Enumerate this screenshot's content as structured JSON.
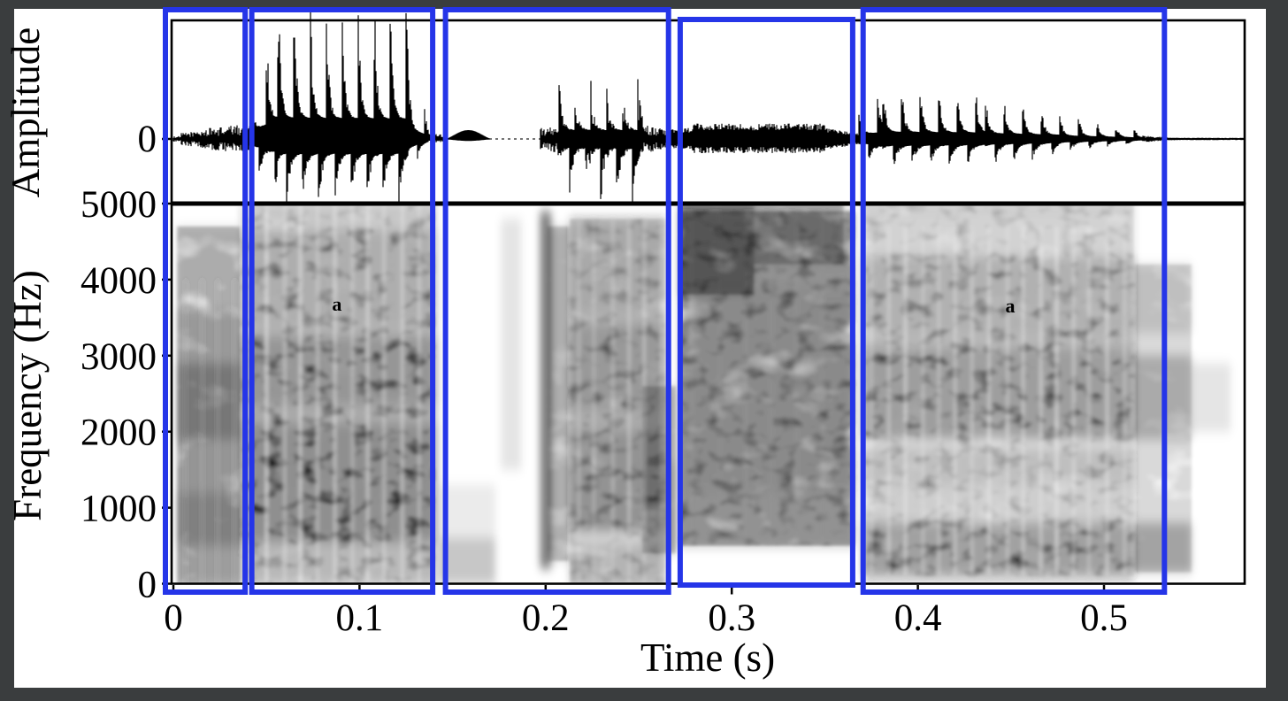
{
  "figure": {
    "kind": "speech waveform and spectrogram figure",
    "background": "#ffffff",
    "frame_color": "#3a3d3e"
  },
  "colors": {
    "highlight_box": "#2535e8",
    "trace": "#000000",
    "annotation": "#b9b400",
    "axis": "#000000"
  },
  "axes": {
    "time": {
      "label": "Time (s)",
      "ticks": [
        {
          "value": 0.0,
          "label": "0"
        },
        {
          "value": 0.1,
          "label": "0.1"
        },
        {
          "value": 0.2,
          "label": "0.2"
        },
        {
          "value": 0.3,
          "label": "0.3"
        },
        {
          "value": 0.4,
          "label": "0.4"
        },
        {
          "value": 0.5,
          "label": "0.5"
        }
      ]
    },
    "frequency": {
      "label": "Frequency (Hz)",
      "ticks": [
        {
          "value": 0,
          "label": "0"
        },
        {
          "value": 1000,
          "label": "1000"
        },
        {
          "value": 2000,
          "label": "2000"
        },
        {
          "value": 3000,
          "label": "3000"
        },
        {
          "value": 4000,
          "label": "4000"
        },
        {
          "value": 5000,
          "label": "5000"
        }
      ]
    },
    "amplitude": {
      "label": "Amplitude",
      "ticks": [
        {
          "value": 0,
          "label": "0"
        }
      ]
    }
  },
  "segmentation_boxes": [
    {
      "t0": -0.0043,
      "t1": 0.0385,
      "inset": false
    },
    {
      "t0": 0.0421,
      "t1": 0.1393,
      "inset": false
    },
    {
      "t0": 0.1462,
      "t1": 0.266,
      "inset": false
    },
    {
      "t0": 0.2723,
      "t1": 0.365,
      "inset": true
    },
    {
      "t0": 0.3706,
      "t1": 0.5325,
      "inset": false
    }
  ],
  "chart_data": [
    {
      "type": "line",
      "panel": "top",
      "title": "speech pressure waveform",
      "ylabel": "Amplitude",
      "x_range_s": [
        0,
        0.5756
      ],
      "zero_line_style": "dashed",
      "amplitude_unit": "normalized, 1.0 = distance from zero line to panel top (clipped)",
      "envelope_segments": [
        {
          "t0": 0.0,
          "t1": 0.004,
          "kind": "quiet",
          "amp_pos": [
            0.02,
            0.02
          ],
          "amp_neg": [
            0.02,
            0.02
          ]
        },
        {
          "t0": 0.004,
          "t1": 0.018,
          "kind": "noise",
          "amp_pos": [
            0.05,
            0.08
          ],
          "amp_neg": [
            0.05,
            0.08
          ]
        },
        {
          "t0": 0.018,
          "t1": 0.041,
          "kind": "noise",
          "amp_pos": [
            0.09,
            0.13
          ],
          "amp_neg": [
            0.09,
            0.13
          ]
        },
        {
          "t0": 0.041,
          "t1": 0.056,
          "kind": "voiced",
          "amp_pos": [
            0.3,
            0.95
          ],
          "amp_neg": [
            0.22,
            0.5
          ],
          "period_s": 0.0088
        },
        {
          "t0": 0.056,
          "t1": 0.126,
          "kind": "voiced",
          "amp_pos": [
            1.0,
            0.95
          ],
          "amp_neg": [
            0.55,
            0.55
          ],
          "period_s": 0.0086
        },
        {
          "t0": 0.126,
          "t1": 0.137,
          "kind": "voiced",
          "amp_pos": [
            0.5,
            0.18
          ],
          "amp_neg": [
            0.32,
            0.1
          ],
          "period_s": 0.0086
        },
        {
          "t0": 0.137,
          "t1": 0.147,
          "kind": "quiet",
          "amp_pos": [
            0.05,
            0.03
          ],
          "amp_neg": [
            0.03,
            0.02
          ]
        },
        {
          "t0": 0.147,
          "t1": 0.17,
          "kind": "hump",
          "amp_pos": [
            0.07,
            0.07
          ],
          "amp_neg": [
            0.012,
            0.012
          ]
        },
        {
          "t0": 0.17,
          "t1": 0.197,
          "kind": "silence",
          "amp_pos": [
            0,
            0
          ],
          "amp_neg": [
            0,
            0
          ]
        },
        {
          "t0": 0.197,
          "t1": 0.207,
          "kind": "noise",
          "amp_pos": [
            0.1,
            0.14
          ],
          "amp_neg": [
            0.1,
            0.14
          ]
        },
        {
          "t0": 0.207,
          "t1": 0.252,
          "kind": "burst",
          "amp_pos": [
            0.5,
            0.48
          ],
          "amp_neg": [
            0.48,
            0.5
          ],
          "period_s": 0.0085
        },
        {
          "t0": 0.252,
          "t1": 0.267,
          "kind": "noise",
          "amp_pos": [
            0.13,
            0.07
          ],
          "amp_neg": [
            0.13,
            0.07
          ]
        },
        {
          "t0": 0.267,
          "t1": 0.279,
          "kind": "fricative",
          "amp_pos": [
            0.08,
            0.1
          ],
          "amp_neg": [
            0.08,
            0.1
          ]
        },
        {
          "t0": 0.279,
          "t1": 0.35,
          "kind": "fricative",
          "amp_pos": [
            0.13,
            0.13
          ],
          "amp_neg": [
            0.12,
            0.12
          ]
        },
        {
          "t0": 0.35,
          "t1": 0.368,
          "kind": "fricative",
          "amp_pos": [
            0.09,
            0.05
          ],
          "amp_neg": [
            0.09,
            0.05
          ]
        },
        {
          "t0": 0.368,
          "t1": 0.381,
          "kind": "voiced",
          "amp_pos": [
            0.2,
            0.33
          ],
          "amp_neg": [
            0.15,
            0.26
          ],
          "period_s": 0.01
        },
        {
          "t0": 0.381,
          "t1": 0.436,
          "kind": "voiced",
          "amp_pos": [
            0.34,
            0.3
          ],
          "amp_neg": [
            0.26,
            0.22
          ],
          "period_s": 0.01
        },
        {
          "t0": 0.436,
          "t1": 0.476,
          "kind": "voiced",
          "amp_pos": [
            0.28,
            0.2
          ],
          "amp_neg": [
            0.21,
            0.15
          ],
          "period_s": 0.01
        },
        {
          "t0": 0.476,
          "t1": 0.52,
          "kind": "voiced",
          "amp_pos": [
            0.17,
            0.07
          ],
          "amp_neg": [
            0.13,
            0.05
          ],
          "period_s": 0.01
        },
        {
          "t0": 0.52,
          "t1": 0.534,
          "kind": "quiet",
          "amp_pos": [
            0.025,
            0.012
          ],
          "amp_neg": [
            0.025,
            0.012
          ]
        },
        {
          "t0": 0.534,
          "t1": 0.576,
          "kind": "line",
          "amp_pos": [
            0.008,
            0.006
          ],
          "amp_neg": [
            0.008,
            0.006
          ]
        }
      ]
    },
    {
      "type": "heatmap",
      "panel": "bottom",
      "title": "wideband spectrogram",
      "xlabel": "Time (s)",
      "ylabel": "Frequency (Hz)",
      "x_range_s": [
        0,
        0.5756
      ],
      "y_range_hz": [
        0,
        5000
      ],
      "colormap": "grayscale, dark = high energy",
      "glottal_striation_period_s": 0.009,
      "regions": [
        {
          "name": "onset-noise",
          "t0": 0.002,
          "t1": 0.036,
          "striation_opacity": 0.22,
          "noise_dark": 0.25,
          "noise_light": 0,
          "striation_freq_range": [
            0,
            4000
          ],
          "bands": [
            [
              0,
              500,
              0.18
            ],
            [
              500,
              1200,
              0.33
            ],
            [
              1200,
              1900,
              0.22
            ],
            [
              1900,
              2900,
              0.38
            ],
            [
              2900,
              3600,
              0.2
            ],
            [
              3600,
              4700,
              0.1
            ]
          ]
        },
        {
          "name": "vowel-1",
          "t0": 0.037,
          "t1": 0.141,
          "striation_opacity": 0.5,
          "noise_dark": 0.2,
          "noise_light": 0.5,
          "striation_freq_range": [
            0,
            5000
          ],
          "bands": [
            [
              0,
              550,
              0.45
            ],
            [
              550,
              2100,
              0.85
            ],
            [
              2100,
              2350,
              0.58
            ],
            [
              2350,
              3250,
              0.78
            ],
            [
              3250,
              3450,
              0.5
            ],
            [
              3450,
              4650,
              0.55
            ],
            [
              4650,
              4900,
              0.3
            ],
            [
              4900,
              5000,
              0.35
            ]
          ]
        },
        {
          "name": "gap-low-blob",
          "t0": 0.142,
          "t1": 0.173,
          "striation_opacity": 0,
          "noise_dark": 0,
          "noise_light": 0,
          "bands": [
            [
              0,
              600,
              0.22
            ],
            [
              600,
              1300,
              0.08
            ]
          ]
        },
        {
          "name": "pre-burst-wisp",
          "t0": 0.176,
          "t1": 0.187,
          "striation_opacity": 0,
          "noise_dark": 0,
          "noise_light": 0,
          "bands": [
            [
              1500,
              4800,
              0.1
            ]
          ]
        },
        {
          "name": "burst-spike",
          "t0": 0.197,
          "t1": 0.203,
          "striation_opacity": 0,
          "noise_dark": 0,
          "noise_light": 0,
          "bands": [
            [
              200,
              4900,
              0.5
            ]
          ]
        },
        {
          "name": "burst-after",
          "t0": 0.201,
          "t1": 0.213,
          "striation_opacity": 0,
          "noise_dark": 0.2,
          "noise_light": 0,
          "bands": [
            [
              300,
              4700,
              0.15
            ]
          ]
        },
        {
          "name": "consonant",
          "t0": 0.213,
          "t1": 0.264,
          "striation_opacity": 0.45,
          "noise_dark": 0.3,
          "noise_light": 0.4,
          "striation_freq_range": [
            0,
            4800
          ],
          "bands": [
            [
              0,
              500,
              0.28
            ],
            [
              700,
              2000,
              0.58
            ],
            [
              2000,
              2300,
              0.36
            ],
            [
              2300,
              3400,
              0.52
            ],
            [
              3400,
              3600,
              0.3
            ],
            [
              3600,
              4800,
              0.38
            ]
          ]
        },
        {
          "name": "consonant-tail",
          "t0": 0.252,
          "t1": 0.27,
          "striation_opacity": 0,
          "noise_dark": 0.2,
          "noise_light": 0,
          "bands": [
            [
              400,
              1600,
              0.22
            ],
            [
              1600,
              2600,
              0.14
            ]
          ]
        },
        {
          "name": "fricative",
          "t0": 0.272,
          "t1": 0.366,
          "striation_opacity": 0.15,
          "striation_period_s": 0.014,
          "noise_dark": 0.55,
          "noise_light": 0.35,
          "striation_freq_range": [
            500,
            4900
          ],
          "bands": [
            [
              500,
              4900,
              0.26
            ],
            [
              1200,
              3900,
              0.1
            ]
          ]
        },
        {
          "name": "fricative-top-cloud",
          "t0": 0.272,
          "t1": 0.312,
          "striation_opacity": 0,
          "noise_dark": 0.3,
          "noise_light": 0,
          "bands": [
            [
              3800,
              5000,
              0.4
            ]
          ]
        },
        {
          "name": "fricative-top-cloud-2",
          "t0": 0.312,
          "t1": 0.36,
          "striation_opacity": 0,
          "noise_dark": 0.2,
          "noise_light": 0,
          "bands": [
            [
              4200,
              5000,
              0.2
            ]
          ]
        },
        {
          "name": "vowel-2",
          "t0": 0.371,
          "t1": 0.516,
          "striation_opacity": 0.5,
          "noise_dark": 0.2,
          "noise_light": 0.5,
          "striation_freq_range": [
            100,
            4700
          ],
          "bands": [
            [
              100,
              800,
              0.68
            ],
            [
              800,
              1300,
              0.24
            ],
            [
              1300,
              1800,
              0.38
            ],
            [
              1900,
              3100,
              0.7
            ],
            [
              3100,
              3300,
              0.45
            ],
            [
              3300,
              4300,
              0.52
            ],
            [
              4300,
              4900,
              0.2
            ],
            [
              4900,
              5000,
              0.3
            ]
          ]
        },
        {
          "name": "vowel-2-fade",
          "t0": 0.516,
          "t1": 0.547,
          "striation_opacity": 0,
          "noise_dark": 0.15,
          "noise_light": 0,
          "bands": [
            [
              150,
              800,
              0.25
            ],
            [
              1900,
              3000,
              0.22
            ],
            [
              3300,
              4200,
              0.12
            ]
          ]
        },
        {
          "name": "far-tail-wisp",
          "t0": 0.547,
          "t1": 0.568,
          "striation_opacity": 0,
          "noise_dark": 0,
          "noise_light": 0,
          "bands": [
            [
              2000,
              2900,
              0.1
            ]
          ]
        }
      ],
      "annotations": [
        {
          "text": "a",
          "t": 0.0879,
          "f": 3684
        },
        {
          "text": "a",
          "t": 0.4496,
          "f": 3660
        }
      ]
    }
  ]
}
